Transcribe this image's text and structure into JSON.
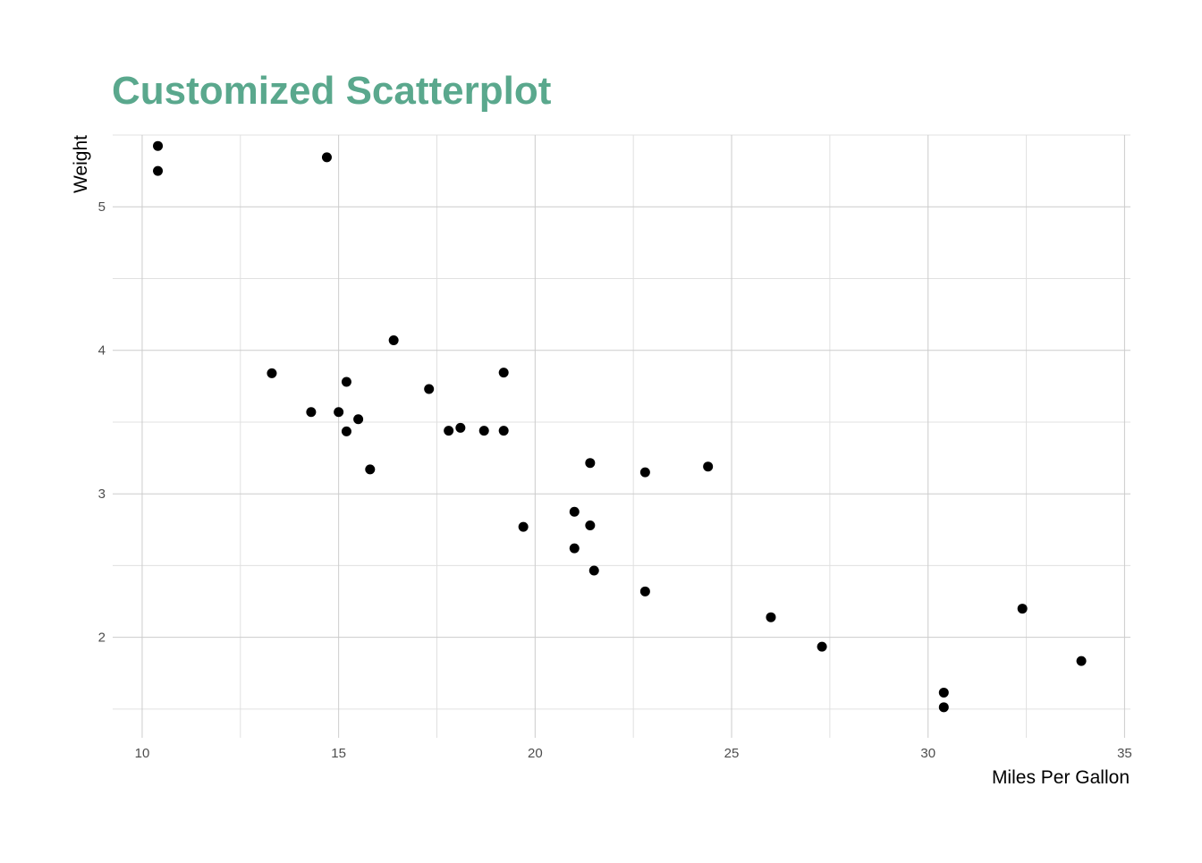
{
  "chart_data": {
    "type": "scatter",
    "title": "Customized Scatterplot",
    "xlabel": "Miles Per Gallon",
    "ylabel": "Weight",
    "xlim": [
      9.25,
      35.15
    ],
    "ylim": [
      1.3,
      5.5
    ],
    "x_ticks": [
      10,
      15,
      20,
      25,
      30,
      35
    ],
    "y_ticks": [
      2,
      3,
      4,
      5
    ],
    "x_minor": [
      12.5,
      17.5,
      22.5,
      27.5,
      32.5
    ],
    "y_minor": [
      1.5,
      2.5,
      3.5,
      4.5,
      5.5
    ],
    "grid": true,
    "title_color": "#5aa88d",
    "point_color": "#000000",
    "points": [
      {
        "x": 21.0,
        "y": 2.62
      },
      {
        "x": 21.0,
        "y": 2.875
      },
      {
        "x": 22.8,
        "y": 2.32
      },
      {
        "x": 21.4,
        "y": 3.215
      },
      {
        "x": 18.7,
        "y": 3.44
      },
      {
        "x": 18.1,
        "y": 3.46
      },
      {
        "x": 14.3,
        "y": 3.57
      },
      {
        "x": 24.4,
        "y": 3.19
      },
      {
        "x": 22.8,
        "y": 3.15
      },
      {
        "x": 19.2,
        "y": 3.44
      },
      {
        "x": 17.8,
        "y": 3.44
      },
      {
        "x": 16.4,
        "y": 4.07
      },
      {
        "x": 17.3,
        "y": 3.73
      },
      {
        "x": 15.2,
        "y": 3.78
      },
      {
        "x": 10.4,
        "y": 5.25
      },
      {
        "x": 10.4,
        "y": 5.424
      },
      {
        "x": 14.7,
        "y": 5.345
      },
      {
        "x": 32.4,
        "y": 2.2
      },
      {
        "x": 30.4,
        "y": 1.615
      },
      {
        "x": 33.9,
        "y": 1.835
      },
      {
        "x": 21.5,
        "y": 2.465
      },
      {
        "x": 15.5,
        "y": 3.52
      },
      {
        "x": 15.2,
        "y": 3.435
      },
      {
        "x": 13.3,
        "y": 3.84
      },
      {
        "x": 19.2,
        "y": 3.845
      },
      {
        "x": 27.3,
        "y": 1.935
      },
      {
        "x": 26.0,
        "y": 2.14
      },
      {
        "x": 30.4,
        "y": 1.513
      },
      {
        "x": 15.8,
        "y": 3.17
      },
      {
        "x": 19.7,
        "y": 2.77
      },
      {
        "x": 15.0,
        "y": 3.57
      },
      {
        "x": 21.4,
        "y": 2.78
      }
    ]
  }
}
